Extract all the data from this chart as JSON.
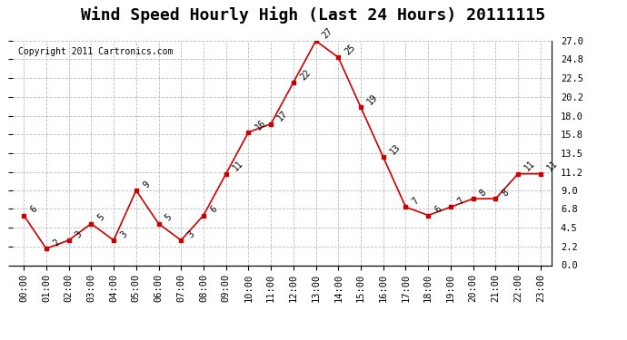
{
  "title": "Wind Speed Hourly High (Last 24 Hours) 20111115",
  "copyright_text": "Copyright 2011 Cartronics.com",
  "hours": [
    "00:00",
    "01:00",
    "02:00",
    "03:00",
    "04:00",
    "05:00",
    "06:00",
    "07:00",
    "08:00",
    "09:00",
    "10:00",
    "11:00",
    "12:00",
    "13:00",
    "14:00",
    "15:00",
    "16:00",
    "17:00",
    "18:00",
    "19:00",
    "20:00",
    "21:00",
    "22:00",
    "23:00"
  ],
  "values": [
    6,
    2,
    3,
    5,
    3,
    9,
    5,
    3,
    6,
    11,
    16,
    17,
    22,
    27,
    25,
    19,
    13,
    7,
    6,
    7,
    8,
    8,
    11,
    11
  ],
  "line_color": "#cc0000",
  "marker_color": "#cc0000",
  "background_color": "#ffffff",
  "plot_bg_color": "#ffffff",
  "grid_color": "#bbbbbb",
  "ylim": [
    0.0,
    27.0
  ],
  "yticks": [
    0.0,
    2.2,
    4.5,
    6.8,
    9.0,
    11.2,
    13.5,
    15.8,
    18.0,
    20.2,
    22.5,
    24.8,
    27.0
  ],
  "title_fontsize": 13,
  "label_fontsize": 8,
  "tick_fontsize": 7.5,
  "copyright_fontsize": 7
}
